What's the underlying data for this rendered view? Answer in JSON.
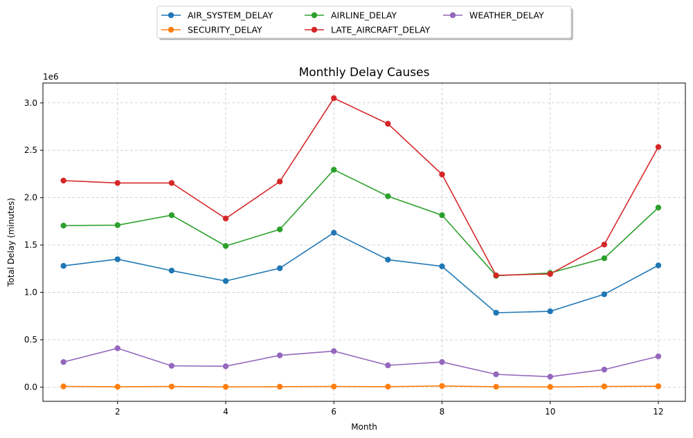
{
  "chart_data": {
    "type": "line",
    "title": "Monthly Delay Causes",
    "xlabel": "Month",
    "ylabel": "Total Delay (minutes)",
    "y_offset_label": "1e6",
    "x": [
      1,
      2,
      3,
      4,
      5,
      6,
      7,
      8,
      9,
      10,
      11,
      12
    ],
    "xlim": [
      0.62,
      12.5
    ],
    "ylim": [
      -150000,
      3210000
    ],
    "x_ticks": [
      2,
      4,
      6,
      8,
      10,
      12
    ],
    "y_ticks": [
      0,
      500000,
      1000000,
      1500000,
      2000000,
      2500000,
      3000000
    ],
    "y_tick_labels": [
      "0.0",
      "0.5",
      "1.0",
      "1.5",
      "2.0",
      "2.5",
      "3.0"
    ],
    "grid": true,
    "legend_position": "top-center",
    "series": [
      {
        "name": "AIR_SYSTEM_DELAY",
        "color": "#1f77b4",
        "values": [
          1280000,
          1350000,
          1230000,
          1120000,
          1255000,
          1630000,
          1345000,
          1275000,
          785000,
          800000,
          980000,
          1285000
        ]
      },
      {
        "name": "SECURITY_DELAY",
        "color": "#ff7f0e",
        "values": [
          7000,
          4000,
          6000,
          3000,
          5000,
          6000,
          5000,
          12000,
          4000,
          2000,
          7000,
          9000
        ]
      },
      {
        "name": "AIRLINE_DELAY",
        "color": "#2ca02c",
        "values": [
          1705000,
          1710000,
          1815000,
          1490000,
          1665000,
          2295000,
          2015000,
          1815000,
          1175000,
          1205000,
          1360000,
          1895000
        ]
      },
      {
        "name": "LATE_AIRCRAFT_DELAY",
        "color": "#d62728",
        "values": [
          2180000,
          2155000,
          2155000,
          1780000,
          2170000,
          3050000,
          2780000,
          2245000,
          1180000,
          1195000,
          1505000,
          2535000
        ]
      },
      {
        "name": "WEATHER_DELAY",
        "color": "#9467bd",
        "values": [
          265000,
          410000,
          225000,
          220000,
          335000,
          380000,
          230000,
          265000,
          135000,
          110000,
          185000,
          325000
        ]
      }
    ]
  }
}
